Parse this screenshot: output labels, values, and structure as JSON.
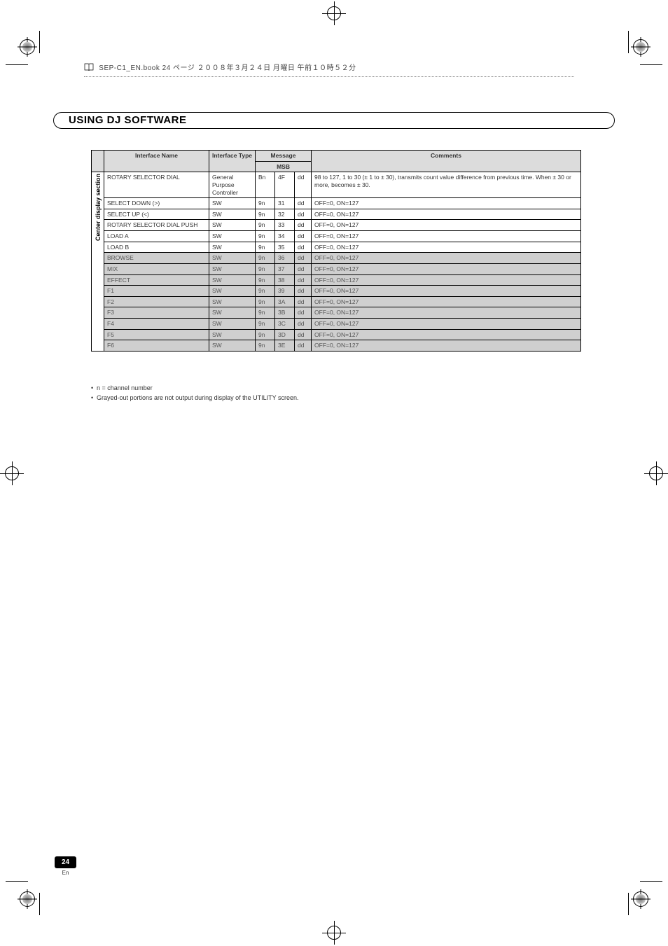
{
  "header_note": "SEP-C1_EN.book 24 ページ ２００８年３月２４日 月曜日 午前１０時５２分",
  "section_title": "USING DJ SOFTWARE",
  "table": {
    "headers": {
      "interface_name": "Interface Name",
      "interface_type": "Interface\nType",
      "message": "Message",
      "msb": "MSB",
      "comments": "Comments"
    },
    "side_label": "Center display section",
    "rows": [
      {
        "grey": false,
        "name": "ROTARY SELECTOR DIAL",
        "type": "General Purpose Controller",
        "m1": "Bn",
        "m2": "4F",
        "m3": "dd",
        "comments": "98 to 127, 1 to 30 (± 1 to ± 30), transmits count value difference from previous time. When ± 30 or more, becomes ± 30."
      },
      {
        "grey": false,
        "name": "SELECT DOWN (>)",
        "type": "SW",
        "m1": "9n",
        "m2": "31",
        "m3": "dd",
        "comments": "OFF=0, ON=127"
      },
      {
        "grey": false,
        "name": "SELECT UP (<)",
        "type": "SW",
        "m1": "9n",
        "m2": "32",
        "m3": "dd",
        "comments": "OFF=0, ON=127"
      },
      {
        "grey": false,
        "name": "ROTARY SELECTOR DIAL PUSH",
        "type": "SW",
        "m1": "9n",
        "m2": "33",
        "m3": "dd",
        "comments": "OFF=0, ON=127"
      },
      {
        "grey": false,
        "name": "LOAD A",
        "type": "SW",
        "m1": "9n",
        "m2": "34",
        "m3": "dd",
        "comments": "OFF=0, ON=127"
      },
      {
        "grey": false,
        "name": "LOAD B",
        "type": "SW",
        "m1": "9n",
        "m2": "35",
        "m3": "dd",
        "comments": "OFF=0, ON=127"
      },
      {
        "grey": true,
        "name": "BROWSE",
        "type": "SW",
        "m1": "9n",
        "m2": "36",
        "m3": "dd",
        "comments": "OFF=0, ON=127"
      },
      {
        "grey": true,
        "name": "MIX",
        "type": "SW",
        "m1": "9n",
        "m2": "37",
        "m3": "dd",
        "comments": "OFF=0, ON=127"
      },
      {
        "grey": true,
        "name": "EFFECT",
        "type": "SW",
        "m1": "9n",
        "m2": "38",
        "m3": "dd",
        "comments": "OFF=0, ON=127"
      },
      {
        "grey": true,
        "name": "F1",
        "type": "SW",
        "m1": "9n",
        "m2": "39",
        "m3": "dd",
        "comments": "OFF=0, ON=127"
      },
      {
        "grey": true,
        "name": "F2",
        "type": "SW",
        "m1": "9n",
        "m2": "3A",
        "m3": "dd",
        "comments": "OFF=0, ON=127"
      },
      {
        "grey": true,
        "name": "F3",
        "type": "SW",
        "m1": "9n",
        "m2": "3B",
        "m3": "dd",
        "comments": "OFF=0, ON=127"
      },
      {
        "grey": true,
        "name": "F4",
        "type": "SW",
        "m1": "9n",
        "m2": "3C",
        "m3": "dd",
        "comments": "OFF=0, ON=127"
      },
      {
        "grey": true,
        "name": "F5",
        "type": "SW",
        "m1": "9n",
        "m2": "3D",
        "m3": "dd",
        "comments": "OFF=0, ON=127"
      },
      {
        "grey": true,
        "name": "F6",
        "type": "SW",
        "m1": "9n",
        "m2": "3E",
        "m3": "dd",
        "comments": "OFF=0, ON=127"
      }
    ]
  },
  "notes": [
    "n = channel number",
    "Grayed-out portions are not output during display of the UTILITY screen."
  ],
  "page_number": "24",
  "page_lang": "En",
  "colors": {
    "header_grey": "#dcdcdc",
    "row_grey": "#cfcfcf",
    "text": "#333333",
    "black": "#000000"
  }
}
